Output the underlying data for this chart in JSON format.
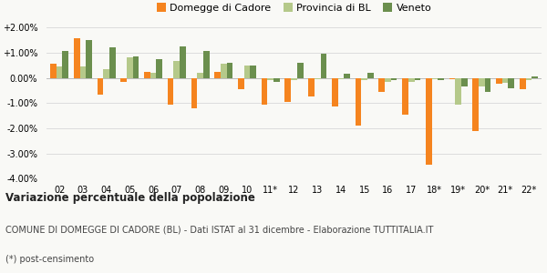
{
  "categories": [
    "02",
    "03",
    "04",
    "05",
    "06",
    "07",
    "08",
    "09",
    "10",
    "11*",
    "12",
    "13",
    "14",
    "15",
    "16",
    "17",
    "18*",
    "19*",
    "20*",
    "21*",
    "22*"
  ],
  "domegge": [
    0.55,
    1.55,
    -0.65,
    -0.15,
    0.25,
    -1.05,
    -1.2,
    0.25,
    -0.45,
    -1.05,
    -0.95,
    -0.75,
    -1.15,
    -1.9,
    -0.55,
    -1.45,
    -3.45,
    -0.05,
    -2.1,
    -0.25,
    -0.45
  ],
  "provincia": [
    0.45,
    0.45,
    0.35,
    0.8,
    0.2,
    0.65,
    0.2,
    0.55,
    0.5,
    -0.1,
    -0.1,
    -0.05,
    -0.05,
    -0.1,
    -0.15,
    -0.15,
    -0.05,
    -1.05,
    -0.35,
    -0.2,
    -0.1
  ],
  "veneto": [
    1.05,
    1.5,
    1.2,
    0.85,
    0.75,
    1.25,
    1.05,
    0.6,
    0.5,
    -0.15,
    0.6,
    0.95,
    0.15,
    0.2,
    -0.1,
    -0.1,
    -0.1,
    -0.35,
    -0.55,
    -0.4,
    0.05
  ],
  "domegge_color": "#f5841f",
  "provincia_color": "#b5c98a",
  "veneto_color": "#6b8f4e",
  "background_color": "#f9f9f6",
  "grid_color": "#dddddd",
  "title": "Variazione percentuale della popolazione",
  "subtitle": "COMUNE DI DOMEGGE DI CADORE (BL) - Dati ISTAT al 31 dicembre - Elaborazione TUTTITALIA.IT",
  "footnote": "(*) post-censimento",
  "ylim": [
    -4.0,
    2.0
  ],
  "yticks": [
    -4.0,
    -3.0,
    -2.0,
    -1.0,
    0.0,
    1.0,
    2.0
  ],
  "legend_labels": [
    "Domegge di Cadore",
    "Provincia di BL",
    "Veneto"
  ]
}
